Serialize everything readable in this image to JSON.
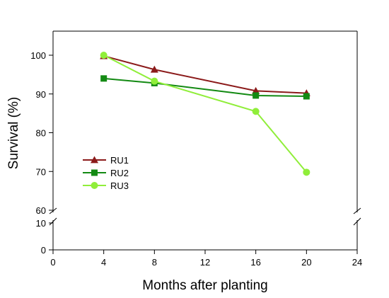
{
  "chart_data": {
    "type": "line",
    "xlabel": "Months after planting",
    "ylabel": "Survival (%)",
    "xlim": [
      0,
      24
    ],
    "x_ticks": [
      0,
      4,
      8,
      12,
      16,
      20,
      24
    ],
    "y_axis_break": {
      "lower_range": [
        0,
        10
      ],
      "upper_range": [
        60,
        100
      ]
    },
    "y_ticks_lower": [
      0,
      10
    ],
    "y_ticks_upper": [
      60,
      70,
      80,
      90,
      100
    ],
    "grid": false,
    "legend_position": "left-middle",
    "series": [
      {
        "name": "RU1",
        "marker": "triangle",
        "color": "#8b1a1a",
        "x": [
          4,
          8,
          16,
          20
        ],
        "y": [
          99.8,
          96.3,
          90.8,
          90.2
        ]
      },
      {
        "name": "RU2",
        "marker": "square",
        "color": "#138a13",
        "x": [
          4,
          8,
          16,
          20
        ],
        "y": [
          94.0,
          92.8,
          89.6,
          89.4
        ]
      },
      {
        "name": "RU3",
        "marker": "circle",
        "color": "#90ee3a",
        "x": [
          4,
          8,
          16,
          20
        ],
        "y": [
          100.0,
          93.3,
          85.5,
          69.8
        ]
      }
    ]
  }
}
